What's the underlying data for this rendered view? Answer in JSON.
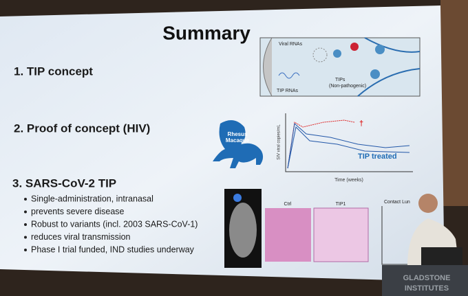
{
  "slide": {
    "title": "Summary",
    "items": [
      "1. TIP concept",
      "2. Proof of concept (HIV)",
      "3. SARS-CoV-2 TIP"
    ],
    "bullets": [
      "Single-administration, intranasal",
      "prevents severe disease",
      "Robust to variants (incl. 2003 SARS-CoV-1)",
      "reduces viral transmission",
      "Phase I trial funded, IND studies underway"
    ]
  },
  "diagram": {
    "viral_rnas": "Viral RNAs",
    "tip_rnas": "TIP RNAs",
    "tips": "TIPs",
    "tips_note": "(Non-pathogenic)"
  },
  "monkey": [
    "Rhesus",
    "Macaque"
  ],
  "chart": {
    "y_label": "SIV viral copies/mL",
    "x_label": "Time (weeks)",
    "legend": "TIP treated",
    "marker": "†"
  },
  "histology": {
    "ctrl": "Ctrl",
    "tip1": "TIP1"
  },
  "contact": "Contact Lun",
  "podium": [
    "GLADSTONE",
    "INSTITUTES"
  ]
}
